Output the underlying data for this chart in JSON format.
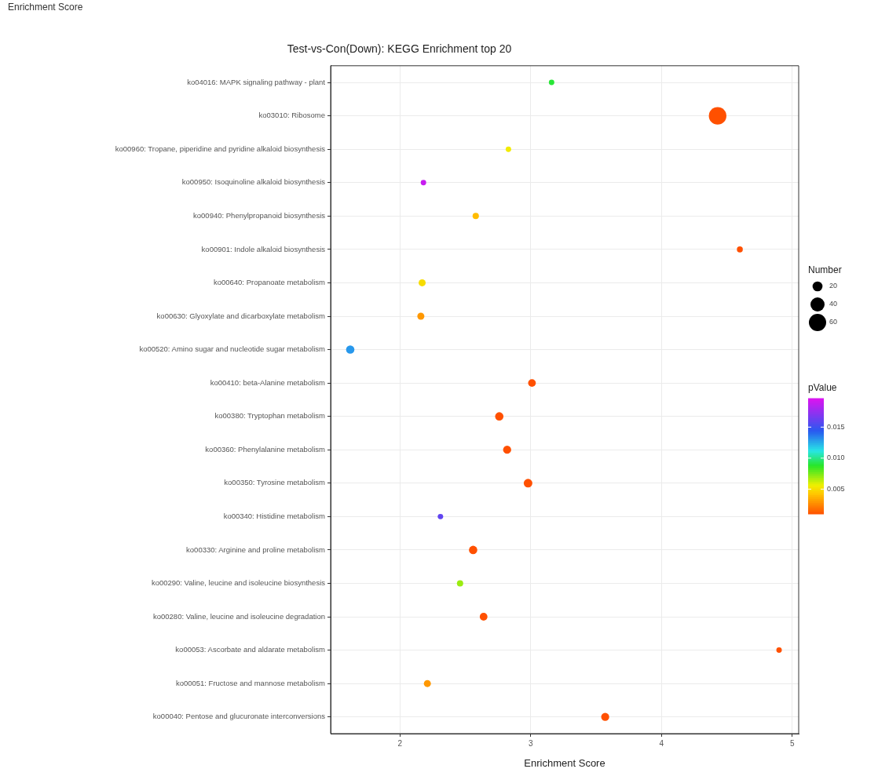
{
  "chart_data": {
    "type": "bubble",
    "title": "Test-vs-Con(Down): KEGG Enrichment top 20",
    "xlabel": "Enrichment Score",
    "orientation": "horizontal",
    "annotations": [
      "Enrichment Score"
    ],
    "categories": [
      "ko04016: MAPK signaling pathway - plant",
      "ko03010: Ribosome",
      "ko00960: Tropane, piperidine and pyridine alkaloid biosynthesis",
      "ko00950: Isoquinoline alkaloid biosynthesis",
      "ko00940: Phenylpropanoid biosynthesis",
      "ko00901: Indole alkaloid biosynthesis",
      "ko00640: Propanoate metabolism",
      "ko00630: Glyoxylate and dicarboxylate metabolism",
      "ko00520: Amino sugar and nucleotide sugar metabolism",
      "ko00410: beta-Alanine metabolism",
      "ko00380: Tryptophan metabolism",
      "ko00360: Phenylalanine metabolism",
      "ko00350: Tyrosine metabolism",
      "ko00340: Histidine metabolism",
      "ko00330: Arginine and proline metabolism",
      "ko00290: Valine, leucine and isoleucine biosynthesis",
      "ko00280: Valine, leucine and isoleucine degradation",
      "ko00053: Ascorbate and aldarate metabolism",
      "ko00051: Fructose and mannose metabolism",
      "ko00040: Pentose and glucuronate interconversions"
    ],
    "series": [
      {
        "values": [
          3.16,
          4.43,
          2.83,
          2.18,
          2.58,
          4.6,
          2.17,
          2.16,
          1.62,
          3.01,
          2.76,
          2.82,
          2.98,
          2.31,
          2.56,
          2.46,
          2.64,
          4.9,
          2.21,
          3.57
        ],
        "sizes": [
          6,
          62,
          6,
          6,
          8,
          7,
          10,
          10,
          14,
          12,
          14,
          13,
          15,
          6,
          14,
          8,
          12,
          6,
          10,
          13
        ],
        "cvalues": [
          0.009,
          0.001,
          0.0055,
          0.019,
          0.004,
          0.001,
          0.005,
          0.003,
          0.013,
          0.001,
          0.001,
          0.001,
          0.001,
          0.016,
          0.001,
          0.007,
          0.001,
          0.001,
          0.003,
          0.001
        ]
      }
    ],
    "size_legend": [
      20,
      40,
      60
    ],
    "legend_title": "Number",
    "clabel": "pValue",
    "clim": [
      0.001,
      0.0196
    ],
    "cticks": [
      0.005,
      {
        "value": 0.01,
        "label": "0.010"
      },
      0.015
    ],
    "xlim": [
      1.47,
      5.05
    ],
    "xticks": [
      2,
      3,
      4,
      5
    ],
    "grid": true
  }
}
